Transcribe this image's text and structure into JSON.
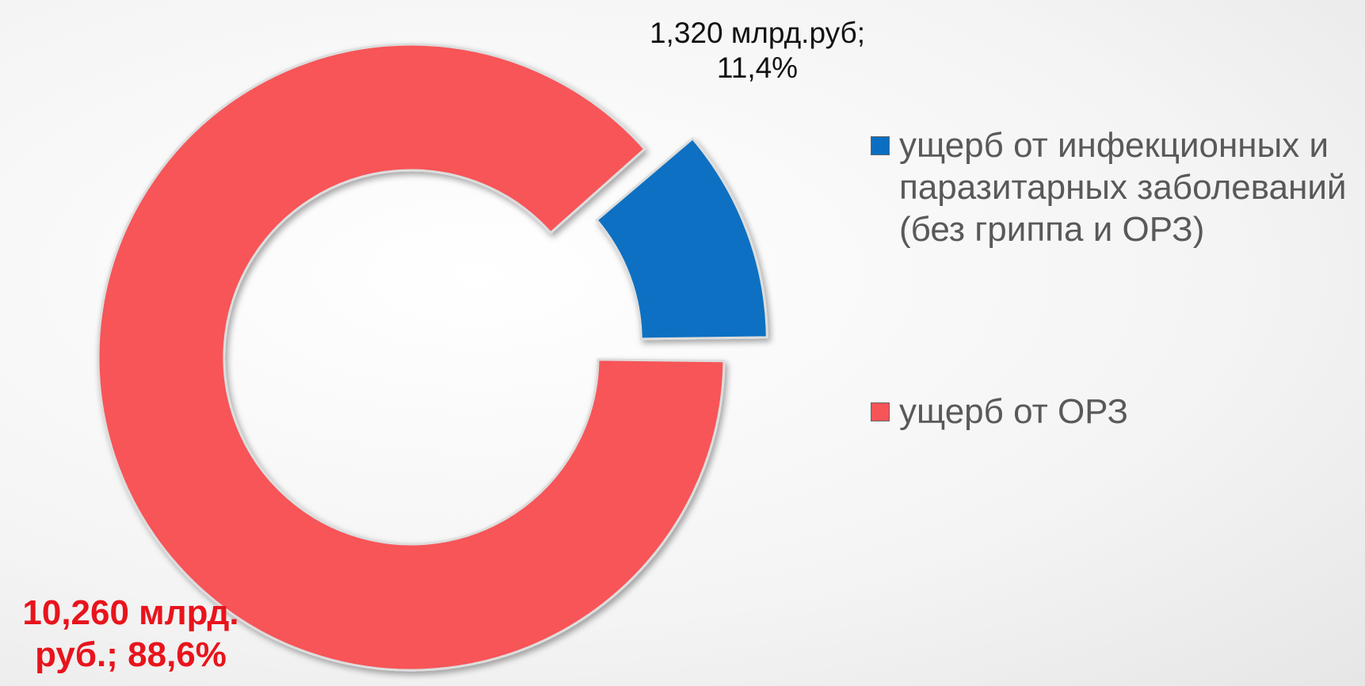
{
  "chart_data": {
    "type": "donut",
    "categories": [
      "ущерб от инфекционных и паразитарных заболеваний (без гриппа и ОРЗ)",
      "ущерб от ОРЗ"
    ],
    "values": [
      11.4,
      88.6
    ],
    "value_labels": [
      "1,320 млрд.руб; 11,4%",
      "10,260 млрд. руб.; 88,6%"
    ],
    "colors": [
      "#0a6fc2",
      "#f75458"
    ],
    "legend": "right"
  }
}
